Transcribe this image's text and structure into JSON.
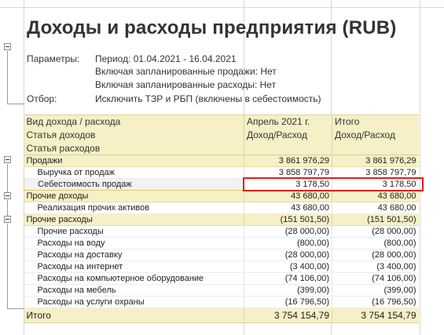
{
  "report": {
    "title": "Доходы и расходы предприятия (RUB)",
    "params_label": "Параметры:",
    "params": [
      "Период: 01.04.2021 - 16.04.2021",
      "Включая запланированные продажи: Нет",
      "Включая запланированные расходы: Нет"
    ],
    "filter_label": "Отбор:",
    "filter_value": "Исключить ТЗР и РБП (включены в себестоимость)"
  },
  "table": {
    "header": {
      "col0": [
        "Вид дохода / расхода",
        "Статья доходов",
        "Статья расходов"
      ],
      "col1": [
        "Апрель 2021 г.",
        "Доход/Расход"
      ],
      "col2": [
        "Итого",
        "Доход/Расход"
      ]
    },
    "rows": [
      {
        "label": "Продажи",
        "v1": "3 861 976,29",
        "v2": "3 861 976,29"
      },
      {
        "label": "Выручка от продаж",
        "v1": "3 858 797,79",
        "v2": "3 858 797,79"
      },
      {
        "label": "Себестоимость продаж",
        "v1": "3 178,50",
        "v2": "3 178,50"
      },
      {
        "label": "Прочие доходы",
        "v1": "43 680,00",
        "v2": "43 680,00"
      },
      {
        "label": "Реализация прочих активов",
        "v1": "43 680,00",
        "v2": "43 680,00"
      },
      {
        "label": "Прочие расходы",
        "v1": "(151 501,50)",
        "v2": "(151 501,50)"
      },
      {
        "label": "Прочие расходы",
        "v1": "(28 000,00)",
        "v2": "(28 000,00)"
      },
      {
        "label": "Расходы на воду",
        "v1": "(800,00)",
        "v2": "(800,00)"
      },
      {
        "label": "Расходы на доставку",
        "v1": "(28 000,00)",
        "v2": "(28 000,00)"
      },
      {
        "label": "Расходы на интернет",
        "v1": "(3 400,00)",
        "v2": "(3 400,00)"
      },
      {
        "label": "Расходы на компьютерное оборудование",
        "v1": "(74 106,00)",
        "v2": "(74 106,00)"
      },
      {
        "label": "Расходы на мебель",
        "v1": "(399,00)",
        "v2": "(399,00)"
      },
      {
        "label": "Расходы на услуги охраны",
        "v1": "(16 796,50)",
        "v2": "(16 796,50)"
      }
    ],
    "total": {
      "label": "Итого",
      "v1": "3 754 154,79",
      "v2": "3 754 154,79"
    }
  },
  "colors": {
    "group_bg": "#f6f0c6",
    "highlight": "#e21b1b"
  },
  "icons": {
    "collapse": "minus-box-icon"
  }
}
